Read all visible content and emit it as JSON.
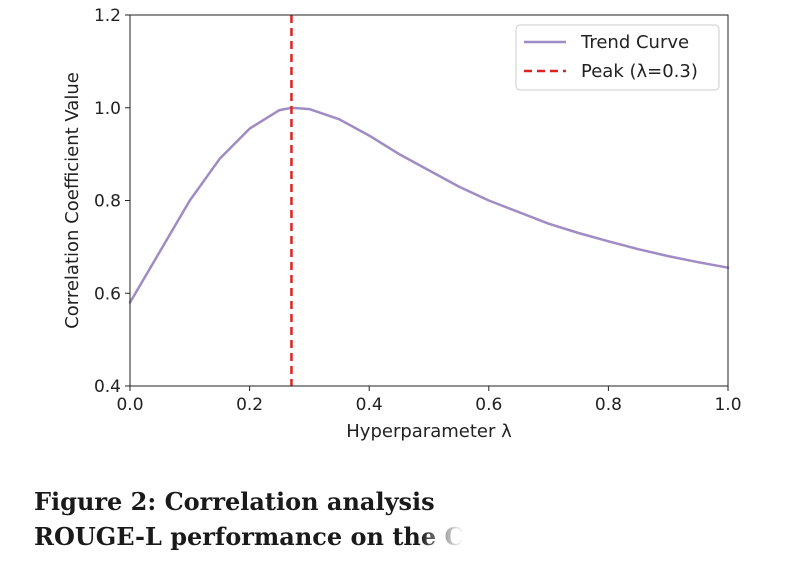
{
  "chart_data": {
    "type": "line",
    "xlabel": "Hyperparameter λ",
    "ylabel": "Correlation Coefficient Value",
    "xlim": [
      0.0,
      1.0
    ],
    "ylim": [
      0.4,
      1.2
    ],
    "xticks": [
      "0.0",
      "0.2",
      "0.4",
      "0.6",
      "0.8",
      "1.0"
    ],
    "yticks": [
      "0.4",
      "0.6",
      "0.8",
      "1.0",
      "1.2"
    ],
    "grid": false,
    "legend_position": "top-right",
    "series": [
      {
        "name": "Trend Curve",
        "color": "#a08cc4",
        "style": "solid",
        "x": [
          0.0,
          0.05,
          0.1,
          0.15,
          0.2,
          0.25,
          0.27,
          0.3,
          0.35,
          0.4,
          0.45,
          0.5,
          0.55,
          0.6,
          0.65,
          0.7,
          0.75,
          0.8,
          0.85,
          0.9,
          0.95,
          1.0
        ],
        "y": [
          0.58,
          0.69,
          0.8,
          0.89,
          0.955,
          0.995,
          1.0,
          0.997,
          0.975,
          0.94,
          0.9,
          0.865,
          0.83,
          0.8,
          0.775,
          0.75,
          0.73,
          0.712,
          0.695,
          0.68,
          0.667,
          0.655
        ]
      },
      {
        "name": "Peak (λ=0.3)",
        "color": "#dd2222",
        "style": "dashed",
        "vline_x": 0.27
      }
    ]
  },
  "caption": {
    "line1": "Figure 2: Correlation analysis",
    "line2": "ROUGE-L performance on the C"
  }
}
